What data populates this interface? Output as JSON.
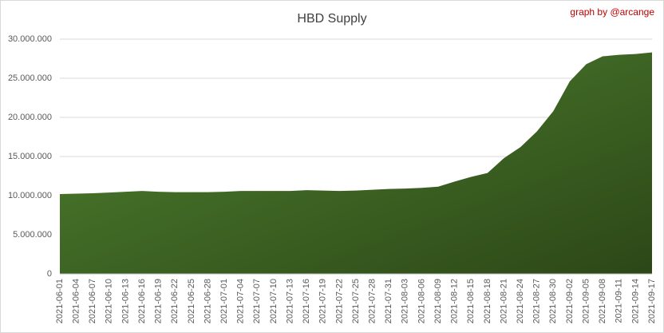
{
  "chart_data": {
    "type": "area",
    "title": "HBD Supply",
    "annotation": "graph by @arcange",
    "categories": [
      "2021-06-01",
      "2021-06-04",
      "2021-06-07",
      "2021-06-10",
      "2021-06-13",
      "2021-06-16",
      "2021-06-19",
      "2021-06-22",
      "2021-06-25",
      "2021-06-28",
      "2021-07-01",
      "2021-07-04",
      "2021-07-07",
      "2021-07-10",
      "2021-07-13",
      "2021-07-16",
      "2021-07-19",
      "2021-07-22",
      "2021-07-25",
      "2021-07-28",
      "2021-07-31",
      "2021-08-03",
      "2021-08-06",
      "2021-08-09",
      "2021-08-12",
      "2021-08-15",
      "2021-08-18",
      "2021-08-21",
      "2021-08-24",
      "2021-08-27",
      "2021-08-30",
      "2021-09-02",
      "2021-09-05",
      "2021-09-08",
      "2021-09-11",
      "2021-09-14",
      "2021-09-17"
    ],
    "values": [
      10200000,
      10250000,
      10300000,
      10400000,
      10500000,
      10600000,
      10500000,
      10450000,
      10450000,
      10450000,
      10500000,
      10600000,
      10600000,
      10600000,
      10600000,
      10700000,
      10650000,
      10600000,
      10650000,
      10750000,
      10850000,
      10900000,
      11000000,
      11150000,
      11800000,
      12400000,
      12900000,
      14800000,
      16200000,
      18200000,
      20800000,
      24600000,
      26800000,
      27800000,
      28000000,
      28100000,
      28300000
    ],
    "color": "#4a7a2a",
    "ylim": [
      0,
      30000000
    ],
    "yticks": [
      0,
      {
        "value": 5000000,
        "label": "5.000.000"
      },
      {
        "value": 10000000,
        "label": "10.000.000"
      },
      {
        "value": 15000000,
        "label": "15.000.000"
      },
      {
        "value": 20000000,
        "label": "20.000.000"
      },
      {
        "value": 25000000,
        "label": "25.000.000"
      },
      {
        "value": 30000000,
        "label": "30.000.000"
      }
    ],
    "grid": true
  }
}
